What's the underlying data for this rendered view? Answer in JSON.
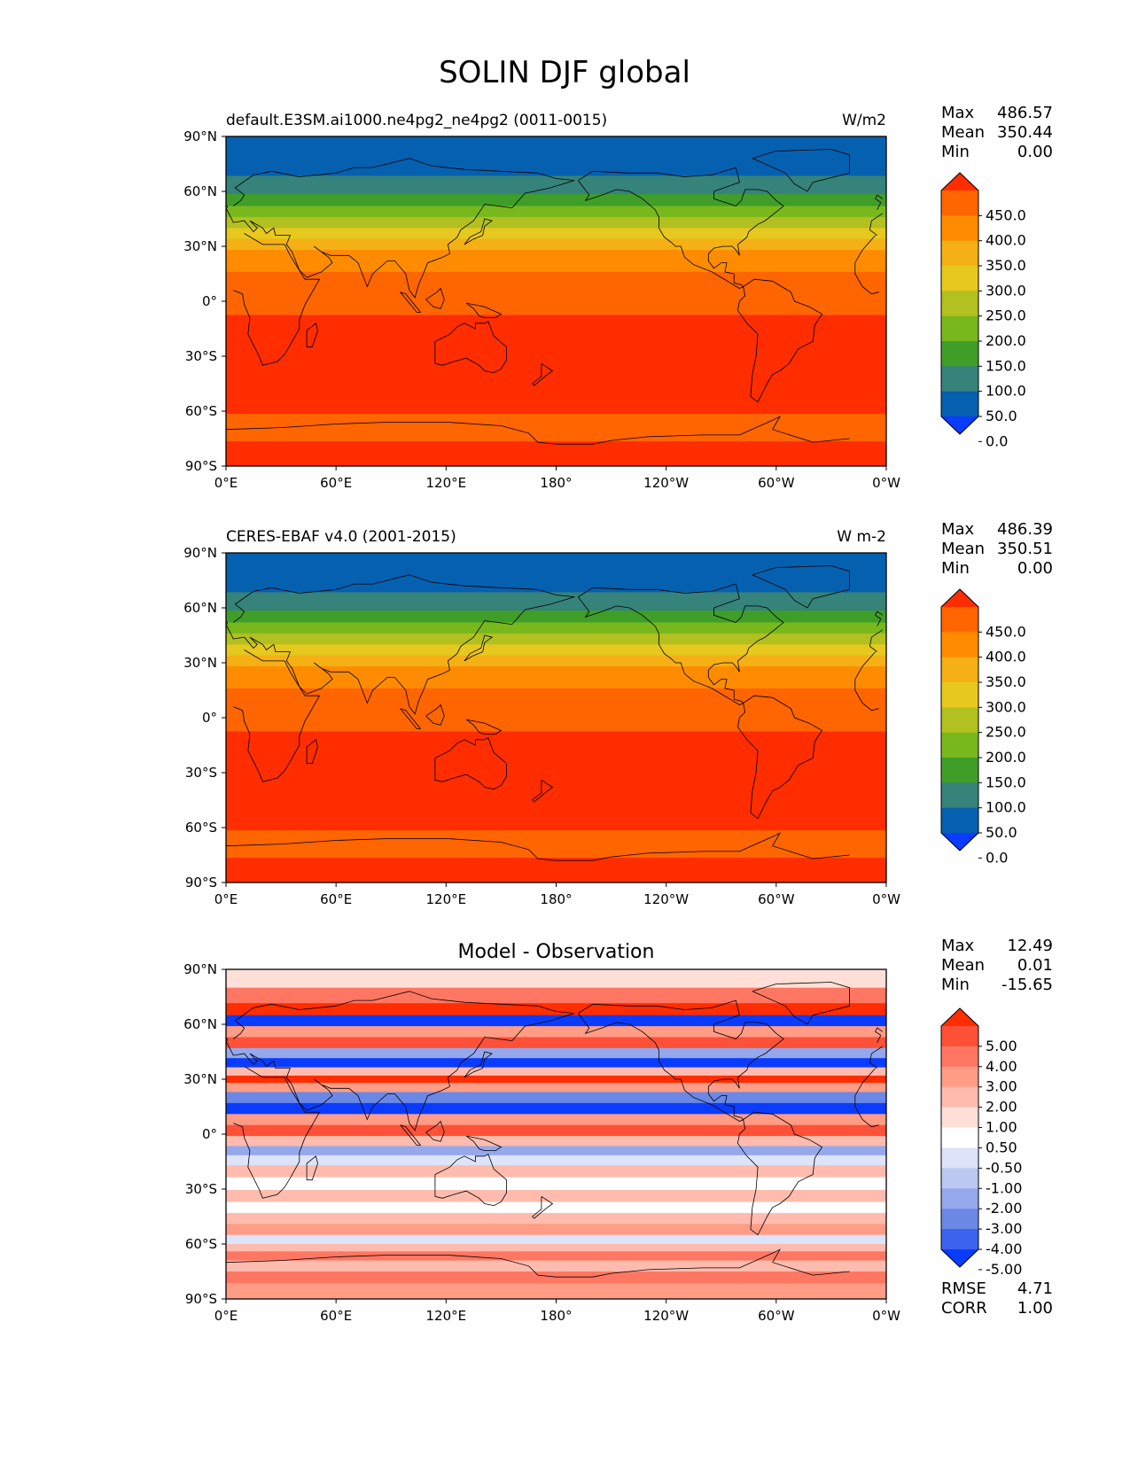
{
  "figure": {
    "title": "SOLIN DJF global"
  },
  "colors": {
    "solin_levels": [
      "#0a3cff",
      "#0560b0",
      "#35837a",
      "#3f9e28",
      "#78b81c",
      "#b2c020",
      "#e6c81e",
      "#f5b015",
      "#ff8c00",
      "#ff6500",
      "#ff2d00"
    ],
    "diff_levels": [
      "#0a3cff",
      "#3b63ee",
      "#6b88e6",
      "#95a8ec",
      "#bac8f2",
      "#dde3f8",
      "#ffffff",
      "#ffdfd8",
      "#ffbcae",
      "#ff9c86",
      "#ff7762",
      "#ff5038",
      "#ff2d00"
    ],
    "coastline": "#000000"
  },
  "panels": [
    {
      "name": "model",
      "title_left": "default.E3SM.ai1000.ne4pg2_ne4pg2 (0011-0015)",
      "title_center": "",
      "units": "W/m2",
      "stats": [
        {
          "label": "Max",
          "value": "486.57"
        },
        {
          "label": "Mean",
          "value": "350.44"
        },
        {
          "label": "Min",
          "value": "0.00"
        }
      ],
      "colorbar_labels": [
        "450.0",
        "400.0",
        "350.0",
        "300.0",
        "250.0",
        "200.0",
        "150.0",
        "100.0",
        "50.0",
        "0.0"
      ],
      "metrics": []
    },
    {
      "name": "obs",
      "title_left": "CERES-EBAF v4.0 (2001-2015)",
      "title_center": "",
      "units": "W m-2",
      "stats": [
        {
          "label": "Max",
          "value": "486.39"
        },
        {
          "label": "Mean",
          "value": "350.51"
        },
        {
          "label": "Min",
          "value": "0.00"
        }
      ],
      "colorbar_labels": [
        "450.0",
        "400.0",
        "350.0",
        "300.0",
        "250.0",
        "200.0",
        "150.0",
        "100.0",
        "50.0",
        "0.0"
      ],
      "metrics": []
    },
    {
      "name": "diff",
      "title_left": "",
      "title_center": "Model - Observation",
      "units": "",
      "stats": [
        {
          "label": "Max",
          "value": "12.49"
        },
        {
          "label": "Mean",
          "value": "0.01"
        },
        {
          "label": "Min",
          "value": "-15.65"
        }
      ],
      "colorbar_labels": [
        "5.00",
        "4.00",
        "3.00",
        "2.00",
        "1.00",
        "0.50",
        "-0.50",
        "-1.00",
        "-2.00",
        "-3.00",
        "-4.00",
        "-5.00"
      ],
      "metrics": [
        {
          "label": "RMSE",
          "value": "4.71"
        },
        {
          "label": "CORR",
          "value": "1.00"
        }
      ]
    }
  ],
  "axes": {
    "x_ticks": [
      "0°E",
      "60°E",
      "120°E",
      "180°",
      "120°W",
      "60°W",
      "0°W"
    ],
    "y_ticks": [
      "90°N",
      "60°N",
      "30°N",
      "0°",
      "30°S",
      "60°S",
      "90°S"
    ]
  },
  "chart_data": [
    {
      "type": "heatmap",
      "title": "default.E3SM.ai1000.ne4pg2_ne4pg2 (0011-0015)",
      "units": "W/m2",
      "x": [
        0,
        60,
        120,
        180,
        240,
        300,
        360
      ],
      "xlim": [
        0,
        360
      ],
      "ylim": [
        -90,
        90
      ],
      "levels": [
        0,
        50,
        100,
        150,
        200,
        250,
        300,
        350,
        400,
        450
      ],
      "zonal_profile": {
        "lat": [
          87,
          75,
          62,
          55,
          49,
          43,
          37,
          31,
          25,
          19,
          13,
          5,
          -20,
          -55,
          -68,
          -85
        ],
        "value": [
          0,
          25,
          75,
          125,
          175,
          225,
          275,
          325,
          375,
          375,
          425,
          425,
          475,
          475,
          425,
          475
        ]
      },
      "stats": {
        "max": 486.57,
        "mean": 350.44,
        "min": 0.0
      }
    },
    {
      "type": "heatmap",
      "title": "CERES-EBAF v4.0 (2001-2015)",
      "units": "W m-2",
      "x": [
        0,
        60,
        120,
        180,
        240,
        300,
        360
      ],
      "xlim": [
        0,
        360
      ],
      "ylim": [
        -90,
        90
      ],
      "levels": [
        0,
        50,
        100,
        150,
        200,
        250,
        300,
        350,
        400,
        450
      ],
      "zonal_profile": {
        "lat": [
          87,
          75,
          62,
          55,
          49,
          43,
          37,
          31,
          25,
          19,
          13,
          5,
          -20,
          -55,
          -68,
          -85
        ],
        "value": [
          0,
          25,
          75,
          125,
          175,
          225,
          275,
          325,
          375,
          375,
          425,
          425,
          475,
          475,
          425,
          475
        ]
      },
      "stats": {
        "max": 486.39,
        "mean": 350.51,
        "min": 0.0
      }
    },
    {
      "type": "heatmap",
      "title": "Model - Observation",
      "x": [
        0,
        60,
        120,
        180,
        240,
        300,
        360
      ],
      "xlim": [
        0,
        360
      ],
      "ylim": [
        -90,
        90
      ],
      "levels": [
        -5,
        -4,
        -3,
        -2,
        -1,
        -0.5,
        0.5,
        1,
        2,
        3,
        4,
        5
      ],
      "zonal_profile": {
        "lat": [
          85,
          75,
          68,
          62,
          56,
          50,
          44,
          39,
          34,
          30,
          26,
          20,
          14,
          8,
          2,
          -4,
          -9,
          -14,
          -20,
          -27,
          -34,
          -40,
          -46,
          -52,
          -58,
          -62,
          -66,
          -72,
          -78,
          -85
        ],
        "value": [
          0.7,
          3,
          5,
          -5.5,
          2,
          4,
          -3,
          -5.5,
          1,
          5.5,
          2.5,
          -4,
          -5.5,
          2,
          4,
          1.5,
          -3,
          -1,
          1,
          -0.5,
          1.5,
          0.2,
          1.5,
          2.5,
          -1,
          1.5,
          3.5,
          1.5,
          3,
          2
        ]
      },
      "stats": {
        "max": 12.49,
        "mean": 0.01,
        "min": -15.65,
        "rmse": 4.71,
        "corr": 1.0
      }
    }
  ]
}
